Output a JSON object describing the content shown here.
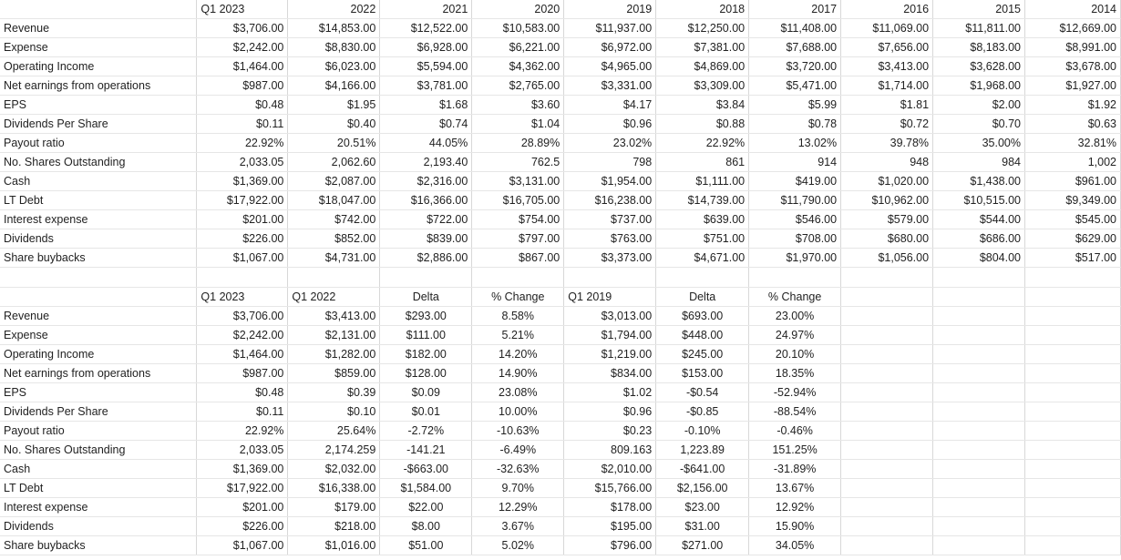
{
  "top": {
    "headers": [
      "",
      "Q1 2023",
      "2022",
      "2021",
      "2020",
      "2019",
      "2018",
      "2017",
      "2016",
      "2015",
      "2014"
    ],
    "rows": [
      [
        "Revenue",
        "$3,706.00",
        "$14,853.00",
        "$12,522.00",
        "$10,583.00",
        "$11,937.00",
        "$12,250.00",
        "$11,408.00",
        "$11,069.00",
        "$11,811.00",
        "$12,669.00"
      ],
      [
        "Expense",
        "$2,242.00",
        "$8,830.00",
        "$6,928.00",
        "$6,221.00",
        "$6,972.00",
        "$7,381.00",
        "$7,688.00",
        "$7,656.00",
        "$8,183.00",
        "$8,991.00"
      ],
      [
        "Operating Income",
        "$1,464.00",
        "$6,023.00",
        "$5,594.00",
        "$4,362.00",
        "$4,965.00",
        "$4,869.00",
        "$3,720.00",
        "$3,413.00",
        "$3,628.00",
        "$3,678.00"
      ],
      [
        "Net earnings from operations",
        "$987.00",
        "$4,166.00",
        "$3,781.00",
        "$2,765.00",
        "$3,331.00",
        "$3,309.00",
        "$5,471.00",
        "$1,714.00",
        "$1,968.00",
        "$1,927.00"
      ],
      [
        "EPS",
        "$0.48",
        "$1.95",
        "$1.68",
        "$3.60",
        "$4.17",
        "$3.84",
        "$5.99",
        "$1.81",
        "$2.00",
        "$1.92"
      ],
      [
        "Dividends Per Share",
        "$0.11",
        "$0.40",
        "$0.74",
        "$1.04",
        "$0.96",
        "$0.88",
        "$0.78",
        "$0.72",
        "$0.70",
        "$0.63"
      ],
      [
        "Payout ratio",
        "22.92%",
        "20.51%",
        "44.05%",
        "28.89%",
        "23.02%",
        "22.92%",
        "13.02%",
        "39.78%",
        "35.00%",
        "32.81%"
      ],
      [
        "No. Shares Outstanding",
        "2,033.05",
        "2,062.60",
        "2,193.40",
        "762.5",
        "798",
        "861",
        "914",
        "948",
        "984",
        "1,002"
      ],
      [
        "Cash",
        "$1,369.00",
        "$2,087.00",
        "$2,316.00",
        "$3,131.00",
        "$1,954.00",
        "$1,111.00",
        "$419.00",
        "$1,020.00",
        "$1,438.00",
        "$961.00"
      ],
      [
        "LT Debt",
        "$17,922.00",
        "$18,047.00",
        "$16,366.00",
        "$16,705.00",
        "$16,238.00",
        "$14,739.00",
        "$11,790.00",
        "$10,962.00",
        "$10,515.00",
        "$9,349.00"
      ],
      [
        "Interest expense",
        "$201.00",
        "$742.00",
        "$722.00",
        "$754.00",
        "$737.00",
        "$639.00",
        "$546.00",
        "$579.00",
        "$544.00",
        "$545.00"
      ],
      [
        "Dividends",
        "$226.00",
        "$852.00",
        "$839.00",
        "$797.00",
        "$763.00",
        "$751.00",
        "$708.00",
        "$680.00",
        "$686.00",
        "$629.00"
      ],
      [
        "Share buybacks",
        "$1,067.00",
        "$4,731.00",
        "$2,886.00",
        "$867.00",
        "$3,373.00",
        "$4,671.00",
        "$1,970.00",
        "$1,056.00",
        "$804.00",
        "$517.00"
      ]
    ]
  },
  "bottom": {
    "headers": [
      "",
      "Q1 2023",
      "Q1 2022",
      "Delta",
      "% Change",
      "Q1 2019",
      "Delta",
      "% Change",
      "",
      "",
      ""
    ],
    "rows": [
      [
        "Revenue",
        "$3,706.00",
        "$3,413.00",
        "$293.00",
        "8.58%",
        "$3,013.00",
        "$693.00",
        "23.00%",
        "",
        "",
        ""
      ],
      [
        "Expense",
        "$2,242.00",
        "$2,131.00",
        "$111.00",
        "5.21%",
        "$1,794.00",
        "$448.00",
        "24.97%",
        "",
        "",
        ""
      ],
      [
        "Operating Income",
        "$1,464.00",
        "$1,282.00",
        "$182.00",
        "14.20%",
        "$1,219.00",
        "$245.00",
        "20.10%",
        "",
        "",
        ""
      ],
      [
        "Net earnings from operations",
        "$987.00",
        "$859.00",
        "$128.00",
        "14.90%",
        "$834.00",
        "$153.00",
        "18.35%",
        "",
        "",
        ""
      ],
      [
        "EPS",
        "$0.48",
        "$0.39",
        "$0.09",
        "23.08%",
        "$1.02",
        "-$0.54",
        "-52.94%",
        "",
        "",
        ""
      ],
      [
        "Dividends Per Share",
        "$0.11",
        "$0.10",
        "$0.01",
        "10.00%",
        "$0.96",
        "-$0.85",
        "-88.54%",
        "",
        "",
        ""
      ],
      [
        "Payout ratio",
        "22.92%",
        "25.64%",
        "-2.72%",
        "-10.63%",
        "$0.23",
        "-0.10%",
        "-0.46%",
        "",
        "",
        ""
      ],
      [
        "No. Shares Outstanding",
        "2,033.05",
        "2,174.259",
        "-141.21",
        "-6.49%",
        "809.163",
        "1,223.89",
        "151.25%",
        "",
        "",
        ""
      ],
      [
        "Cash",
        "$1,369.00",
        "$2,032.00",
        "-$663.00",
        "-32.63%",
        "$2,010.00",
        "-$641.00",
        "-31.89%",
        "",
        "",
        ""
      ],
      [
        "LT Debt",
        "$17,922.00",
        "$16,338.00",
        "$1,584.00",
        "9.70%",
        "$15,766.00",
        "$2,156.00",
        "13.67%",
        "",
        "",
        ""
      ],
      [
        "Interest expense",
        "$201.00",
        "$179.00",
        "$22.00",
        "12.29%",
        "$178.00",
        "$23.00",
        "12.92%",
        "",
        "",
        ""
      ],
      [
        "Dividends",
        "$226.00",
        "$218.00",
        "$8.00",
        "3.67%",
        "$195.00",
        "$31.00",
        "15.90%",
        "",
        "",
        ""
      ],
      [
        "Share buybacks",
        "$1,067.00",
        "$1,016.00",
        "$51.00",
        "5.02%",
        "$796.00",
        "$271.00",
        "34.05%",
        "",
        "",
        ""
      ]
    ]
  }
}
